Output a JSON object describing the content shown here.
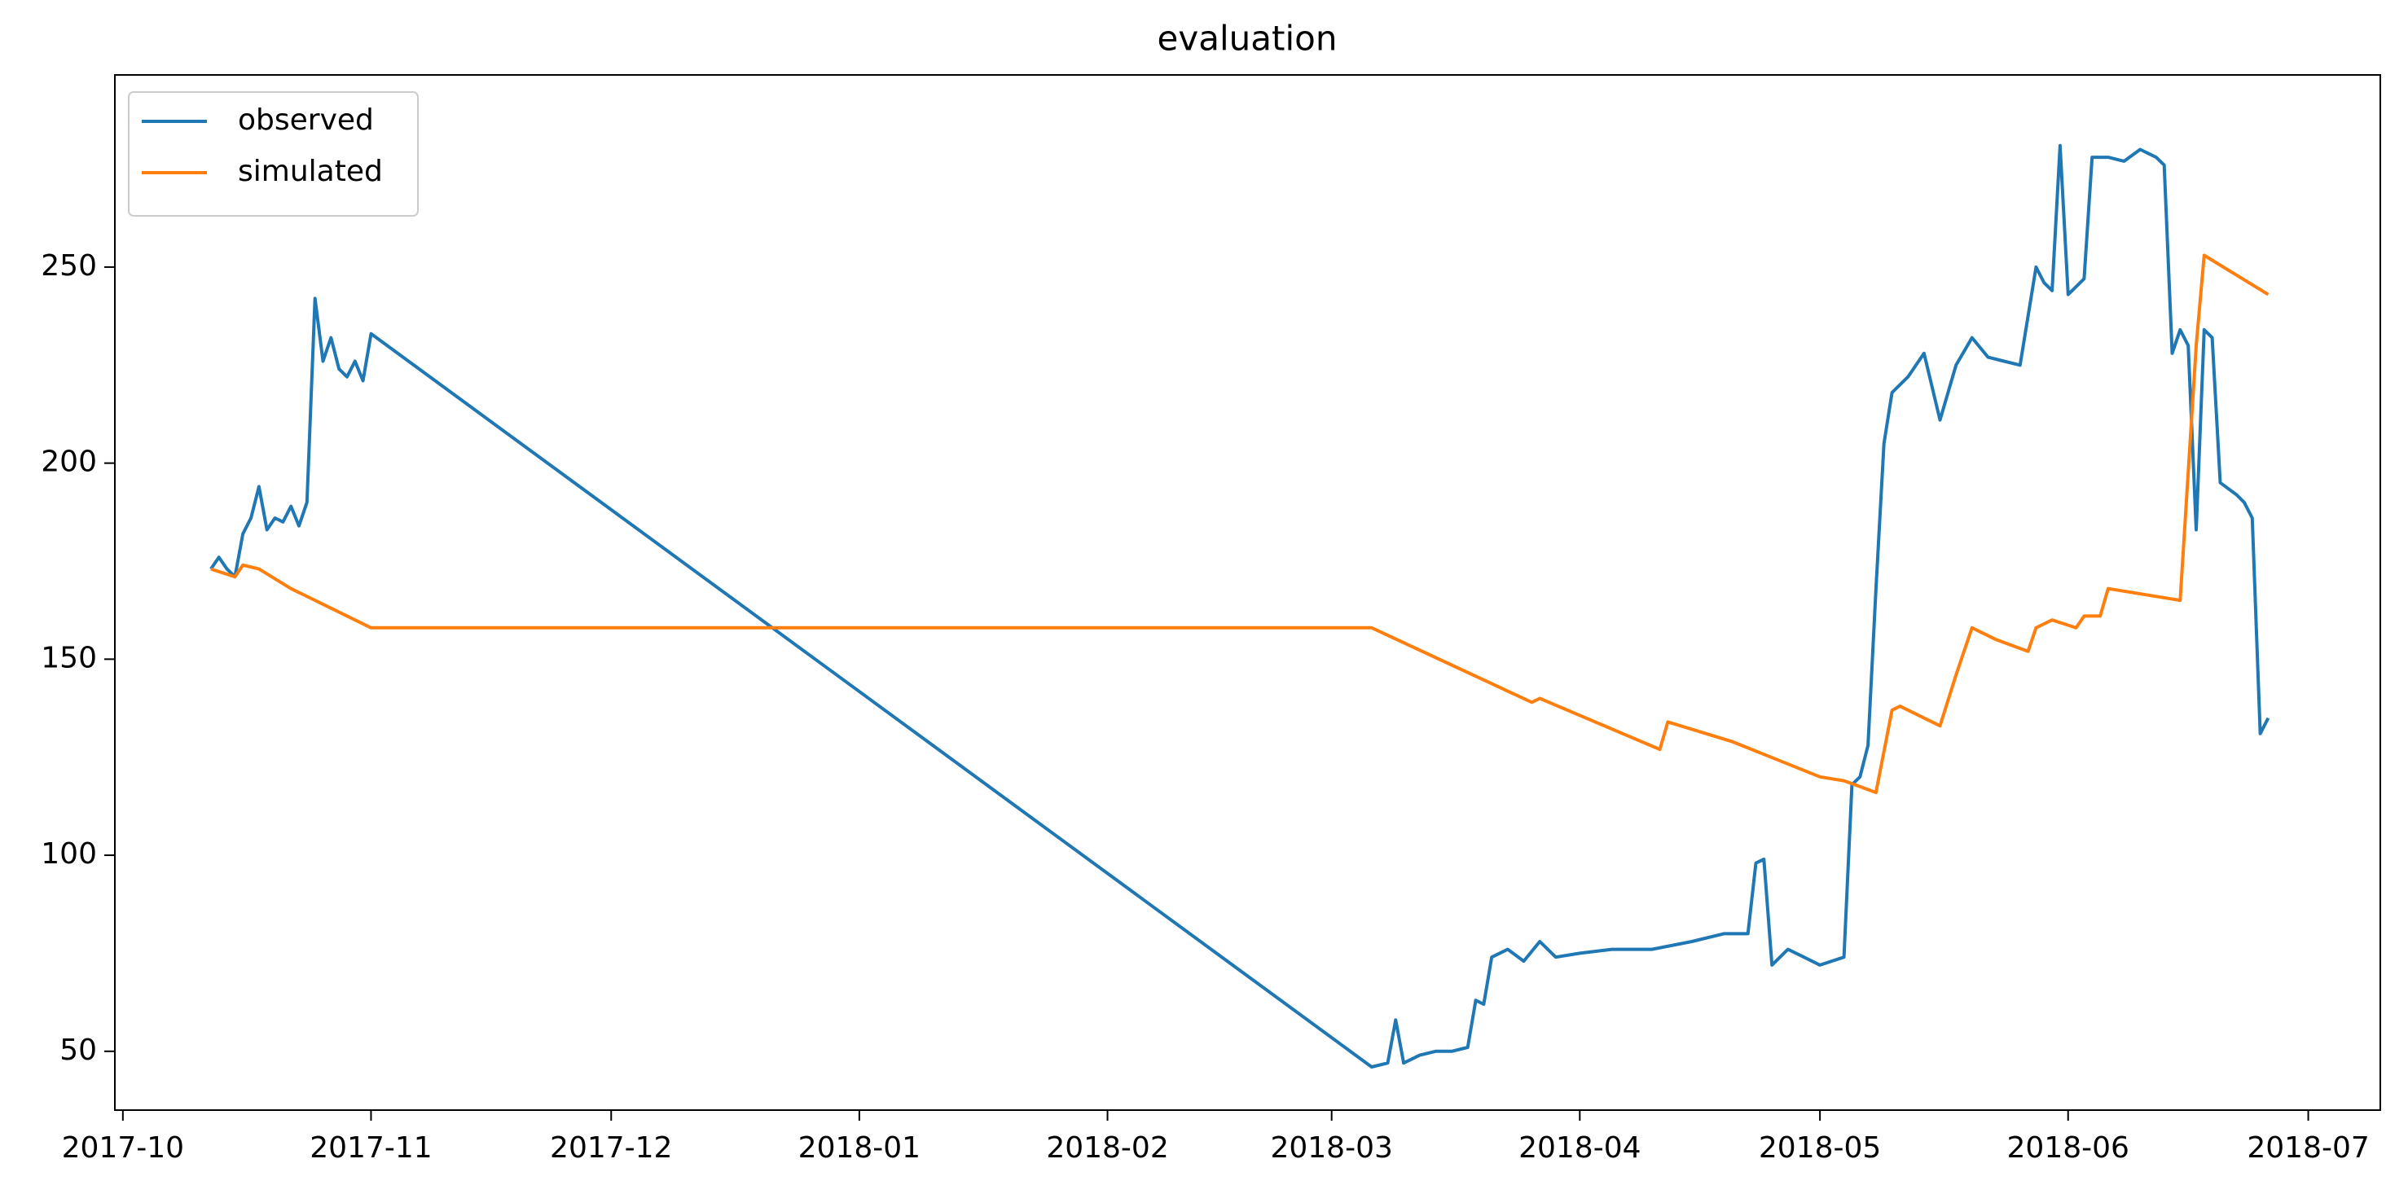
{
  "chart_data": {
    "type": "line",
    "title": "evaluation",
    "xlim": [
      "2017-09-30",
      "2018-07-10"
    ],
    "ylim": [
      35,
      299
    ],
    "xticks": [
      {
        "value": "2017-10-01",
        "label": "2017-10"
      },
      {
        "value": "2017-11-01",
        "label": "2017-11"
      },
      {
        "value": "2017-12-01",
        "label": "2017-12"
      },
      {
        "value": "2018-01-01",
        "label": "2018-01"
      },
      {
        "value": "2018-02-01",
        "label": "2018-02"
      },
      {
        "value": "2018-03-01",
        "label": "2018-03"
      },
      {
        "value": "2018-04-01",
        "label": "2018-04"
      },
      {
        "value": "2018-05-01",
        "label": "2018-05"
      },
      {
        "value": "2018-06-01",
        "label": "2018-06"
      },
      {
        "value": "2018-07-01",
        "label": "2018-07"
      }
    ],
    "yticks": [
      50,
      100,
      150,
      200,
      250
    ],
    "grid": false,
    "legend": "upper left",
    "series": [
      {
        "name": "observed",
        "color": "#1f77b4",
        "x": [
          "2017-10-12",
          "2017-10-13",
          "2017-10-14",
          "2017-10-15",
          "2017-10-16",
          "2017-10-17",
          "2017-10-18",
          "2017-10-19",
          "2017-10-20",
          "2017-10-21",
          "2017-10-22",
          "2017-10-23",
          "2017-10-24",
          "2017-10-25",
          "2017-10-26",
          "2017-10-27",
          "2017-10-28",
          "2017-10-29",
          "2017-10-30",
          "2017-10-31",
          "2017-11-01",
          "2018-03-06",
          "2018-03-08",
          "2018-03-09",
          "2018-03-10",
          "2018-03-12",
          "2018-03-14",
          "2018-03-16",
          "2018-03-18",
          "2018-03-19",
          "2018-03-20",
          "2018-03-21",
          "2018-03-23",
          "2018-03-25",
          "2018-03-27",
          "2018-03-29",
          "2018-04-01",
          "2018-04-05",
          "2018-04-10",
          "2018-04-15",
          "2018-04-19",
          "2018-04-22",
          "2018-04-23",
          "2018-04-24",
          "2018-04-25",
          "2018-04-27",
          "2018-04-29",
          "2018-05-01",
          "2018-05-04",
          "2018-05-05",
          "2018-05-06",
          "2018-05-07",
          "2018-05-08",
          "2018-05-09",
          "2018-05-10",
          "2018-05-12",
          "2018-05-14",
          "2018-05-16",
          "2018-05-18",
          "2018-05-20",
          "2018-05-22",
          "2018-05-24",
          "2018-05-26",
          "2018-05-28",
          "2018-05-29",
          "2018-05-30",
          "2018-05-31",
          "2018-06-01",
          "2018-06-03",
          "2018-06-04",
          "2018-06-06",
          "2018-06-08",
          "2018-06-10",
          "2018-06-12",
          "2018-06-13",
          "2018-06-14",
          "2018-06-15",
          "2018-06-16",
          "2018-06-17",
          "2018-06-18",
          "2018-06-19",
          "2018-06-20",
          "2018-06-22",
          "2018-06-23",
          "2018-06-24",
          "2018-06-25",
          "2018-06-26"
        ],
        "values": [
          173,
          176,
          173,
          171,
          182,
          186,
          194,
          183,
          186,
          185,
          189,
          184,
          190,
          242,
          226,
          232,
          224,
          222,
          226,
          221,
          233,
          46,
          47,
          58,
          47,
          49,
          50,
          50,
          51,
          63,
          62,
          74,
          76,
          73,
          78,
          74,
          75,
          76,
          76,
          78,
          80,
          80,
          98,
          99,
          72,
          76,
          74,
          72,
          74,
          118,
          120,
          128,
          168,
          205,
          218,
          222,
          228,
          211,
          225,
          232,
          227,
          226,
          225,
          250,
          246,
          244,
          281,
          243,
          247,
          278,
          278,
          277,
          280,
          278,
          276,
          228,
          234,
          230,
          183,
          234,
          232,
          195,
          192,
          190,
          186,
          131,
          135
        ]
      },
      {
        "name": "simulated",
        "color": "#ff7f0e",
        "x": [
          "2017-10-12",
          "2017-10-15",
          "2017-10-16",
          "2017-10-18",
          "2017-10-22",
          "2017-10-26",
          "2017-11-01",
          "2018-03-06",
          "2018-03-26",
          "2018-03-27",
          "2018-04-11",
          "2018-04-12",
          "2018-04-20",
          "2018-05-01",
          "2018-05-04",
          "2018-05-08",
          "2018-05-10",
          "2018-05-11",
          "2018-05-16",
          "2018-05-18",
          "2018-05-20",
          "2018-05-23",
          "2018-05-27",
          "2018-05-28",
          "2018-05-30",
          "2018-06-02",
          "2018-06-03",
          "2018-06-05",
          "2018-06-06",
          "2018-06-15",
          "2018-06-17",
          "2018-06-18",
          "2018-06-26"
        ],
        "values": [
          173,
          171,
          174,
          173,
          168,
          164,
          158,
          158,
          139,
          140,
          127,
          134,
          129,
          120,
          119,
          116,
          137,
          138,
          133,
          146,
          158,
          155,
          152,
          158,
          160,
          158,
          161,
          161,
          168,
          165,
          230,
          253,
          243
        ]
      }
    ]
  }
}
